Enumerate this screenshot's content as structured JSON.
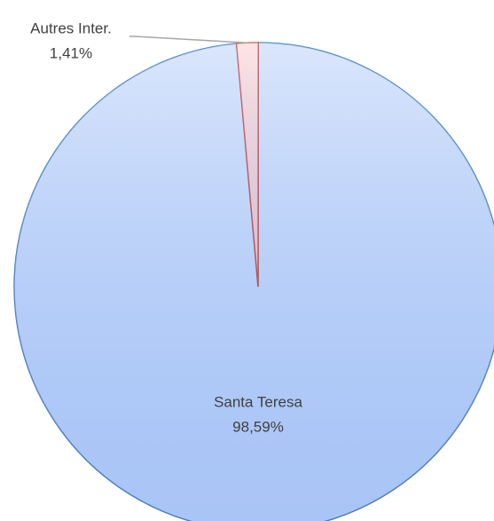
{
  "chart_data": {
    "type": "pie",
    "categories": [
      "Santa Teresa",
      "Autres Inter."
    ],
    "values": [
      98.59,
      1.41
    ],
    "value_labels": [
      "98,59%",
      "1,41%"
    ],
    "colors": [
      "#bcd2fa",
      "#ffcfcf"
    ],
    "edge_colors": [
      "#4a7ebb",
      "#c0504d"
    ]
  }
}
